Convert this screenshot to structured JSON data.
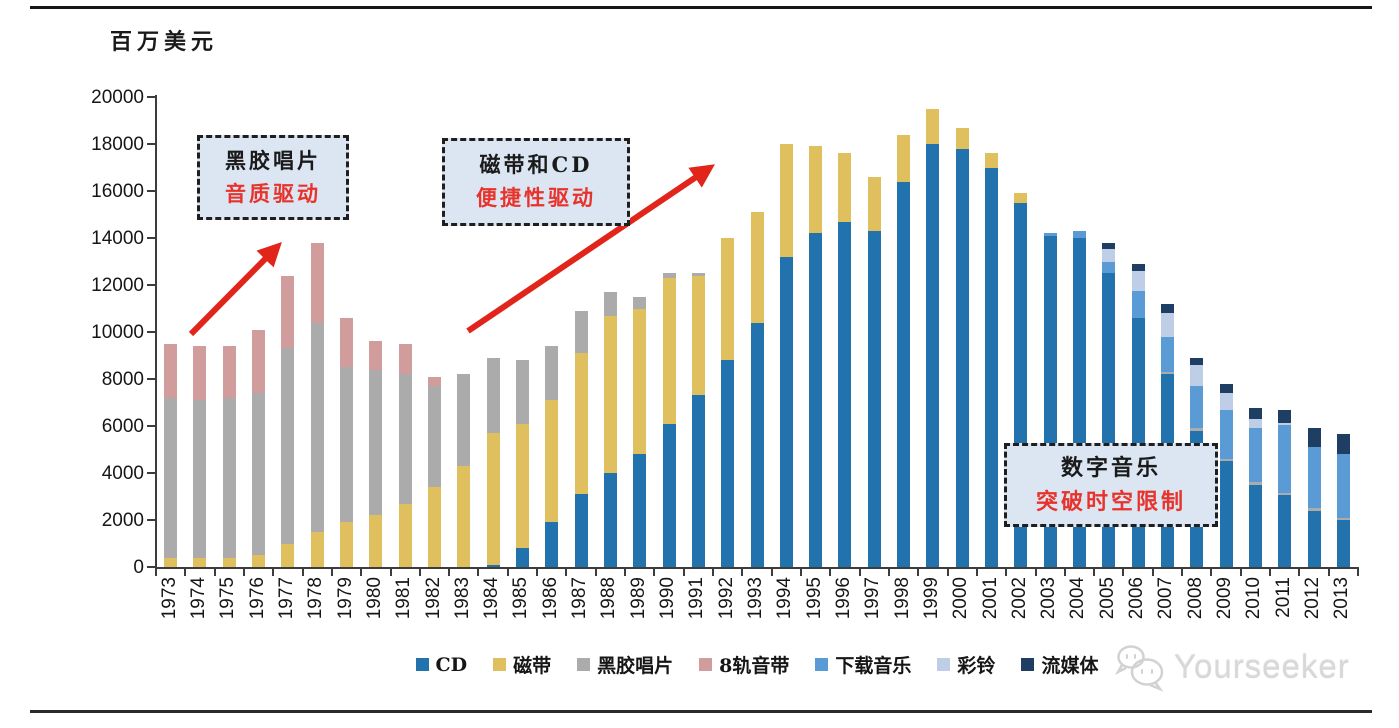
{
  "chart_data": {
    "type": "bar",
    "subtype": "stacked",
    "title": "",
    "ylabel": "百万美元",
    "xlabel": "",
    "ylim": [
      0,
      20000
    ],
    "yticks": [
      0,
      2000,
      4000,
      6000,
      8000,
      10000,
      12000,
      14000,
      16000,
      18000,
      20000
    ],
    "grid": false,
    "legend_position": "bottom",
    "categories": [
      "1973",
      "1974",
      "1975",
      "1976",
      "1977",
      "1978",
      "1979",
      "1980",
      "1981",
      "1982",
      "1983",
      "1984",
      "1985",
      "1986",
      "1987",
      "1988",
      "1989",
      "1990",
      "1991",
      "1992",
      "1993",
      "1994",
      "1995",
      "1996",
      "1997",
      "1998",
      "1999",
      "2000",
      "2001",
      "2002",
      "2003",
      "2004",
      "2005",
      "2006",
      "2007",
      "2008",
      "2009",
      "2010",
      "2011",
      "2012",
      "2013"
    ],
    "series": [
      {
        "name": "CD",
        "color": "#2272AE",
        "values": [
          0,
          0,
          0,
          0,
          0,
          0,
          0,
          0,
          0,
          0,
          0,
          100,
          800,
          1900,
          3100,
          4000,
          4800,
          6100,
          7300,
          8800,
          10400,
          13200,
          14200,
          14700,
          14300,
          16400,
          18000,
          17800,
          17000,
          15500,
          14100,
          14000,
          12500,
          10600,
          8200,
          5800,
          4500,
          3500,
          3050,
          2400,
          2000
        ]
      },
      {
        "name": "磁带",
        "color": "#E0C05E",
        "values": [
          400,
          400,
          400,
          500,
          1000,
          1500,
          1900,
          2200,
          2700,
          3400,
          4300,
          5600,
          5300,
          5200,
          6000,
          6700,
          6200,
          6200,
          5100,
          5200,
          4700,
          4800,
          3700,
          2900,
          2300,
          2000,
          1500,
          900,
          600,
          400,
          0,
          0,
          0,
          0,
          0,
          0,
          0,
          0,
          0,
          0,
          0
        ]
      },
      {
        "name": "黑胶唱片",
        "color": "#ABABAB",
        "values": [
          6800,
          6700,
          6800,
          6900,
          8300,
          8900,
          6600,
          6200,
          5500,
          4300,
          3900,
          3200,
          2700,
          2300,
          1800,
          1000,
          500,
          200,
          100,
          0,
          0,
          0,
          0,
          0,
          0,
          0,
          0,
          0,
          0,
          0,
          0,
          0,
          0,
          0,
          100,
          100,
          100,
          100,
          100,
          100,
          100
        ]
      },
      {
        "name": "8轨音带",
        "color": "#D09C9C",
        "values": [
          2300,
          2300,
          2200,
          2700,
          3100,
          3400,
          2100,
          1200,
          1300,
          400,
          0,
          0,
          0,
          0,
          0,
          0,
          0,
          0,
          0,
          0,
          0,
          0,
          0,
          0,
          0,
          0,
          0,
          0,
          0,
          0,
          0,
          0,
          0,
          0,
          0,
          0,
          0,
          0,
          0,
          0,
          0
        ]
      },
      {
        "name": "下载音乐",
        "color": "#5B9BD5",
        "values": [
          0,
          0,
          0,
          0,
          0,
          0,
          0,
          0,
          0,
          0,
          0,
          0,
          0,
          0,
          0,
          0,
          0,
          0,
          0,
          0,
          0,
          0,
          0,
          0,
          0,
          0,
          0,
          0,
          0,
          0,
          100,
          300,
          500,
          1150,
          1500,
          1800,
          2100,
          2300,
          2900,
          2600,
          2700
        ]
      },
      {
        "name": "彩铃",
        "color": "#BDCEE6",
        "values": [
          0,
          0,
          0,
          0,
          0,
          0,
          0,
          0,
          0,
          0,
          0,
          0,
          0,
          0,
          0,
          0,
          0,
          0,
          0,
          0,
          0,
          0,
          0,
          0,
          0,
          0,
          0,
          0,
          0,
          0,
          0,
          0,
          550,
          850,
          1000,
          900,
          700,
          400,
          100,
          0,
          0
        ]
      },
      {
        "name": "流媒体",
        "color": "#1F3E64",
        "values": [
          0,
          0,
          0,
          0,
          0,
          0,
          0,
          0,
          0,
          0,
          0,
          0,
          0,
          0,
          0,
          0,
          0,
          0,
          0,
          0,
          0,
          0,
          0,
          0,
          0,
          0,
          0,
          0,
          0,
          0,
          0,
          0,
          250,
          300,
          400,
          300,
          400,
          450,
          550,
          800,
          850
        ]
      }
    ],
    "annotations": [
      {
        "line1": "黑胶唱片",
        "line2": "音质驱动"
      },
      {
        "line1": "磁带和CD",
        "line2": "便捷性驱动"
      },
      {
        "line1": "数字音乐",
        "line2": "突破时空限制"
      }
    ],
    "annotation_accent_color": "#E8332C",
    "arrow_color": "#E1251B"
  },
  "watermark": {
    "text": "Yourseeker"
  }
}
